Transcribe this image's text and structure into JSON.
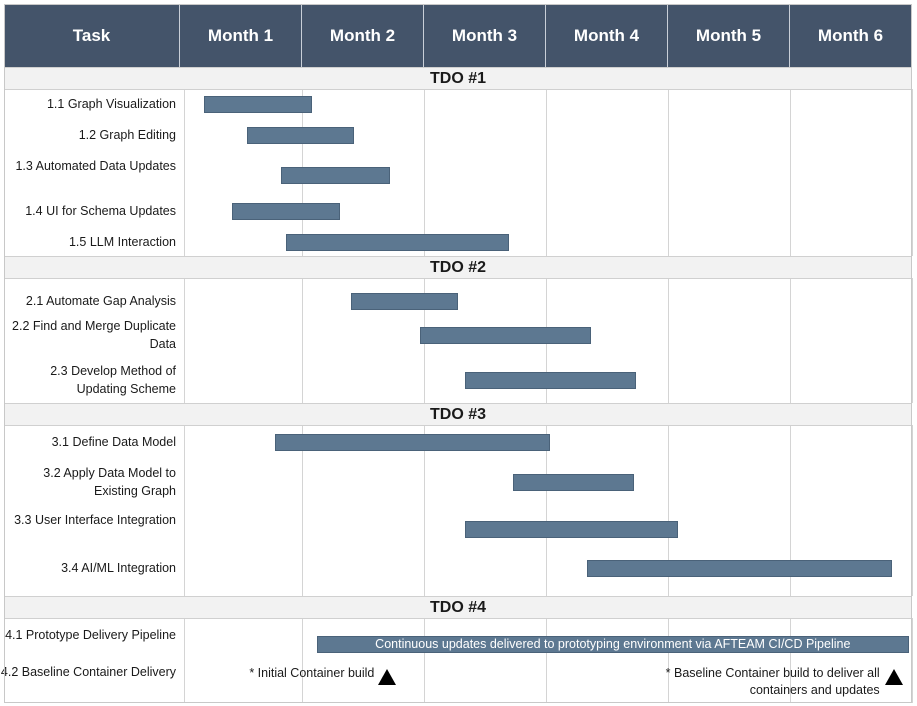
{
  "header": {
    "task": "Task",
    "months": [
      "Month 1",
      "Month 2",
      "Month 3",
      "Month 4",
      "Month 5",
      "Month 6"
    ]
  },
  "colors": {
    "header_bg": "#44546a",
    "bar": "#5d7891",
    "section_bg": "#f2f2f2",
    "milestone": "#000000"
  },
  "chart_data": {
    "type": "gantt",
    "x_unit": "month",
    "xlim": [
      0,
      6
    ],
    "sections": [
      {
        "title": "TDO #1",
        "tasks": [
          {
            "label": "1.1 Graph Visualization",
            "start": 0.2,
            "end": 1.08
          },
          {
            "label": "1.2 Graph Editing",
            "start": 0.55,
            "end": 1.43
          },
          {
            "label": "1.3 Automated Data Updates",
            "start": 0.83,
            "end": 1.72
          },
          {
            "label": "1.4 UI for Schema Updates",
            "start": 0.43,
            "end": 1.31
          },
          {
            "label": "1.5 LLM Interaction",
            "start": 0.87,
            "end": 2.7
          }
        ]
      },
      {
        "title": "TDO #2",
        "tasks": [
          {
            "label": "2.1  Automate Gap Analysis",
            "start": 1.4,
            "end": 2.28
          },
          {
            "label": "2.2  Find and Merge Duplicate Data",
            "start": 1.97,
            "end": 3.37
          },
          {
            "label": "2.3  Develop Method of Updating Scheme",
            "start": 2.34,
            "end": 3.74
          }
        ]
      },
      {
        "title": "TDO #3",
        "tasks": [
          {
            "label": "3.1 Define Data Model",
            "start": 0.78,
            "end": 3.03
          },
          {
            "label": "3.2 Apply Data Model to Existing Graph",
            "start": 2.73,
            "end": 3.72
          },
          {
            "label": "3.3 User Interface Integration",
            "start": 2.34,
            "end": 4.08
          },
          {
            "label": "3.4 AI/ML Integration",
            "start": 3.34,
            "end": 5.84
          }
        ]
      },
      {
        "title": "TDO #4",
        "tasks": [
          {
            "label": "4.1  Prototype Delivery Pipeline",
            "start": 1.12,
            "end": 6.0,
            "bar_text": "Continuous updates delivered to prototyping environment via AFTEAM CI/CD Pipeline"
          },
          {
            "label": "4.2  Baseline Container Delivery",
            "milestones": [
              {
                "at": 1.7,
                "note": "* Initial Container build"
              },
              {
                "at": 5.85,
                "note": "* Baseline Container build to deliver all containers and updates"
              }
            ]
          }
        ]
      }
    ]
  }
}
